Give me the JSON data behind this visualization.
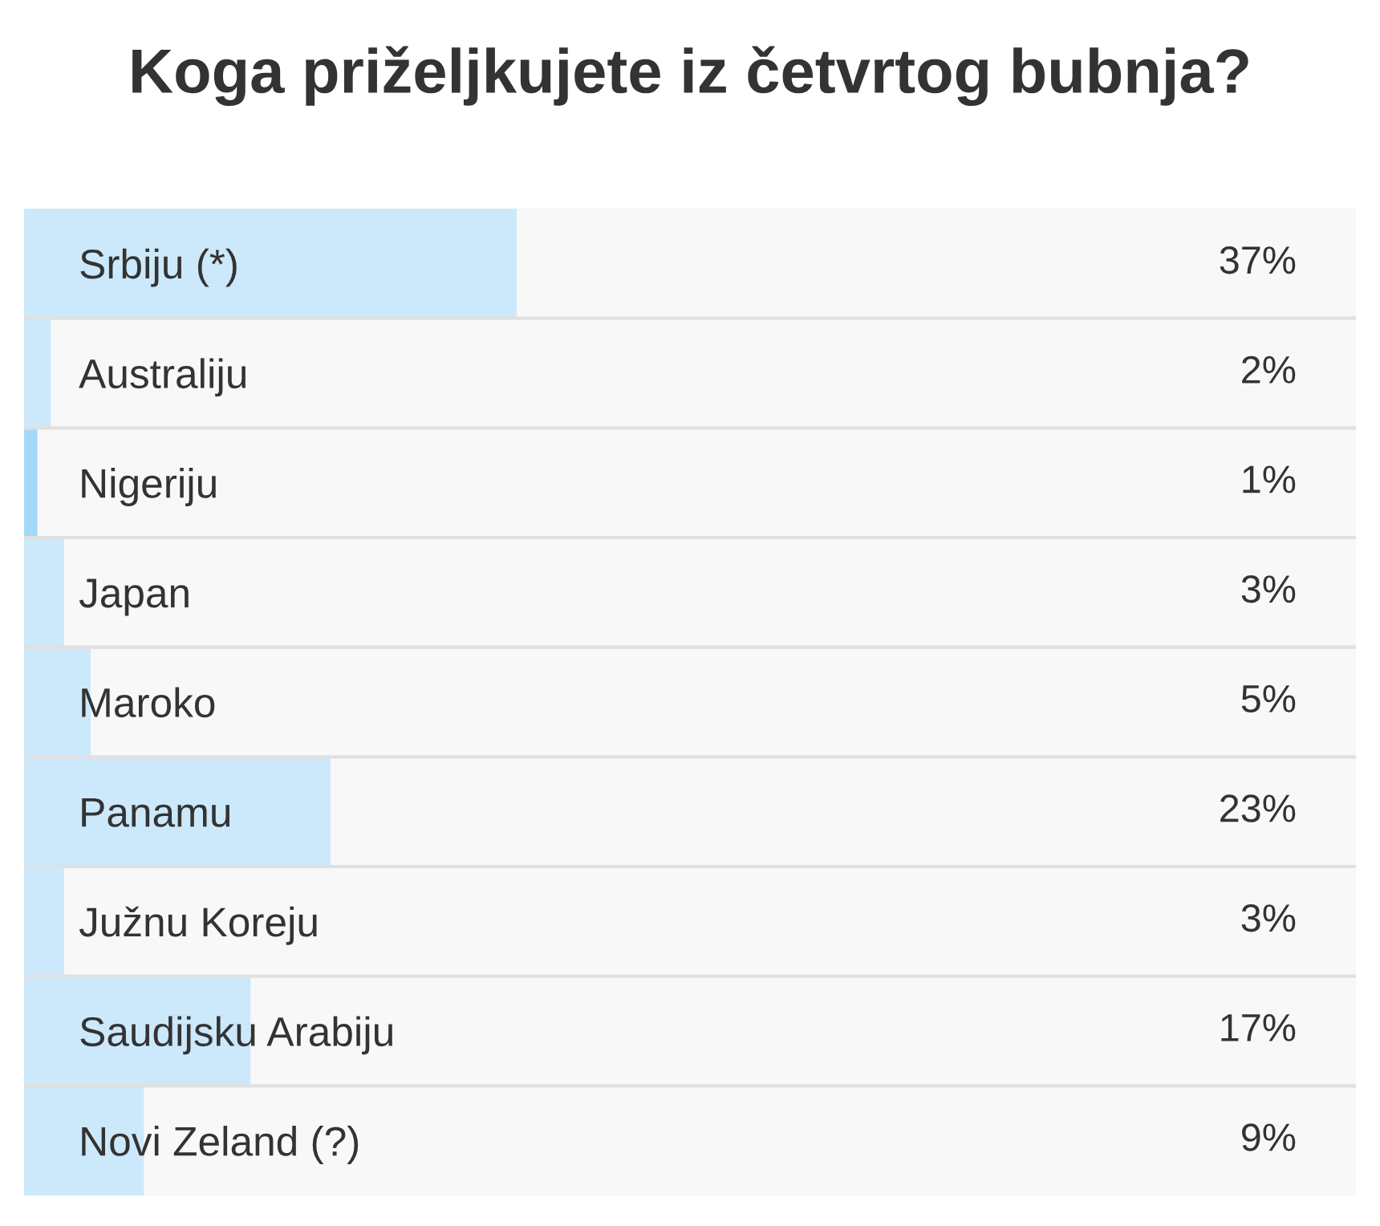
{
  "chart_data": {
    "type": "bar",
    "orientation": "horizontal",
    "title": "Koga priželjkujete iz četvrtog bubnja?",
    "categories": [
      "Srbiju (*)",
      "Australiju",
      "Nigeriju",
      "Japan",
      "Maroko",
      "Panamu",
      "Južnu Koreju",
      "Saudijsku Arabiju",
      "Novi Zeland (?)"
    ],
    "values": [
      37,
      2,
      1,
      3,
      5,
      23,
      3,
      17,
      9
    ],
    "value_labels": [
      "37%",
      "2%",
      "1%",
      "3%",
      "5%",
      "23%",
      "3%",
      "17%",
      "9%"
    ],
    "colors": [
      "#cce9fc",
      "#cce9fc",
      "#a3d8f8",
      "#cce9fc",
      "#cce9fc",
      "#cce9fc",
      "#cce9fc",
      "#cce9fc",
      "#cce9fc"
    ],
    "xlim": [
      0,
      100
    ],
    "grid": "y",
    "tick_labels": "y"
  }
}
